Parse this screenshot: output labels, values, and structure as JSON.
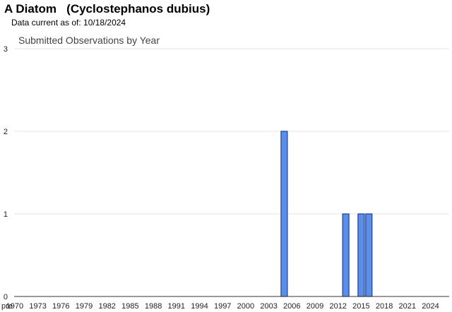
{
  "header": {
    "title": "A Diatom   (Cyclostephanos dubius)",
    "data_current": "Data current as of: 10/18/2024"
  },
  "chart_data": {
    "type": "bar",
    "title": "Submitted Observations by Year",
    "xlabel": "",
    "ylabel": "",
    "ylim": [
      0,
      3
    ],
    "y_ticks": [
      0,
      1,
      2,
      3
    ],
    "grid": true,
    "legend": "none",
    "categories": [
      "pre",
      "1970",
      "1971",
      "1972",
      "1973",
      "1974",
      "1975",
      "1976",
      "1977",
      "1978",
      "1979",
      "1980",
      "1981",
      "1982",
      "1983",
      "1984",
      "1985",
      "1986",
      "1987",
      "1988",
      "1989",
      "1990",
      "1991",
      "1992",
      "1993",
      "1994",
      "1995",
      "1996",
      "1997",
      "1998",
      "1999",
      "2000",
      "2001",
      "2002",
      "2003",
      "2004",
      "2005",
      "2006",
      "2007",
      "2008",
      "2009",
      "2010",
      "2011",
      "2012",
      "2013",
      "2014",
      "2015",
      "2016",
      "2017",
      "2018",
      "2019",
      "2020",
      "2021",
      "2022",
      "2023",
      "2024"
    ],
    "x_tick_labels": [
      "pre",
      "1970",
      "1973",
      "1976",
      "1979",
      "1982",
      "1985",
      "1988",
      "1991",
      "1994",
      "1997",
      "2000",
      "2003",
      "2006",
      "2009",
      "2012",
      "2015",
      "2018",
      "2021",
      "2024"
    ],
    "values": [
      0,
      0,
      0,
      0,
      0,
      0,
      0,
      0,
      0,
      0,
      0,
      0,
      0,
      0,
      0,
      0,
      0,
      0,
      0,
      0,
      0,
      0,
      0,
      0,
      0,
      0,
      0,
      0,
      0,
      0,
      0,
      0,
      0,
      0,
      0,
      0,
      2,
      0,
      0,
      0,
      0,
      0,
      0,
      0,
      1,
      0,
      1,
      1,
      0,
      0,
      0,
      0,
      0,
      0,
      0,
      0
    ],
    "colors": {
      "bar_fill": "#5b8ee6",
      "bar_stroke": "#1f3f99",
      "grid": "#e4e4e4",
      "axis": "#333333"
    }
  }
}
